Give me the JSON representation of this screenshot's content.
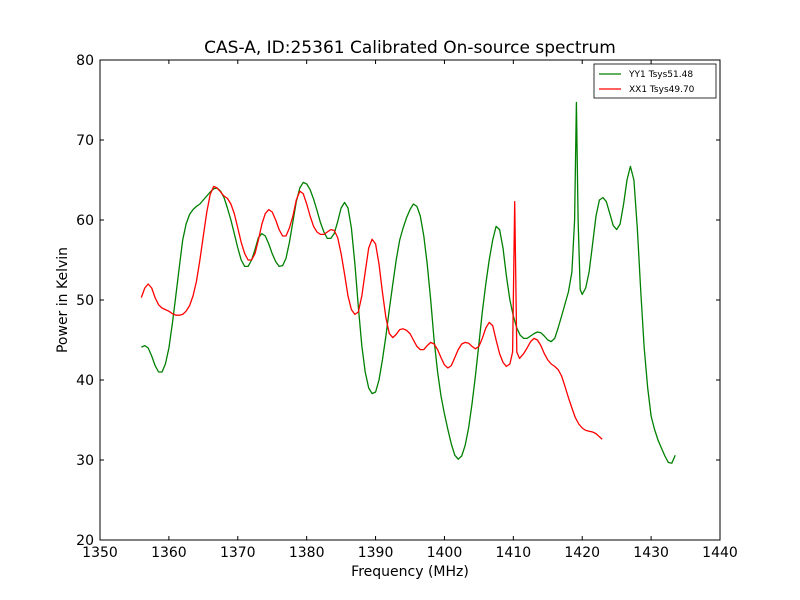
{
  "chart_data": {
    "type": "line",
    "title": "CAS-A, ID:25361 Calibrated On-source spectrum",
    "xlabel": "Frequency (MHz)",
    "ylabel": "Power in Kelvin",
    "xlim": [
      1350,
      1440
    ],
    "ylim": [
      20,
      80
    ],
    "xticks": [
      1350,
      1360,
      1370,
      1380,
      1390,
      1400,
      1410,
      1420,
      1430,
      1440
    ],
    "yticks": [
      20,
      30,
      40,
      50,
      60,
      70,
      80
    ],
    "grid": false,
    "legend_position": "top-right",
    "series": [
      {
        "name": "YY1 Tsys51.48",
        "color": "#008000",
        "points": [
          [
            1356.0,
            44.1
          ],
          [
            1356.5,
            44.3
          ],
          [
            1357.0,
            44.0
          ],
          [
            1357.5,
            43.0
          ],
          [
            1358.0,
            41.8
          ],
          [
            1358.5,
            41.0
          ],
          [
            1359.0,
            41.0
          ],
          [
            1359.5,
            42.0
          ],
          [
            1360.0,
            44.0
          ],
          [
            1360.5,
            47.0
          ],
          [
            1361.0,
            50.5
          ],
          [
            1361.5,
            54.0
          ],
          [
            1362.0,
            57.5
          ],
          [
            1362.5,
            59.5
          ],
          [
            1363.0,
            60.7
          ],
          [
            1363.5,
            61.3
          ],
          [
            1364.0,
            61.7
          ],
          [
            1364.5,
            62.0
          ],
          [
            1365.0,
            62.5
          ],
          [
            1365.5,
            63.0
          ],
          [
            1366.0,
            63.5
          ],
          [
            1366.5,
            63.9
          ],
          [
            1367.0,
            64.0
          ],
          [
            1367.5,
            63.6
          ],
          [
            1368.0,
            62.8
          ],
          [
            1368.5,
            61.5
          ],
          [
            1369.0,
            60.0
          ],
          [
            1369.5,
            58.3
          ],
          [
            1370.0,
            56.5
          ],
          [
            1370.5,
            55.0
          ],
          [
            1371.0,
            54.2
          ],
          [
            1371.5,
            54.2
          ],
          [
            1372.0,
            55.0
          ],
          [
            1372.5,
            56.3
          ],
          [
            1373.0,
            57.8
          ],
          [
            1373.5,
            58.3
          ],
          [
            1374.0,
            58.0
          ],
          [
            1374.5,
            57.0
          ],
          [
            1375.0,
            55.8
          ],
          [
            1375.5,
            54.8
          ],
          [
            1376.0,
            54.2
          ],
          [
            1376.5,
            54.3
          ],
          [
            1377.0,
            55.2
          ],
          [
            1377.5,
            57.2
          ],
          [
            1378.0,
            59.8
          ],
          [
            1378.5,
            62.3
          ],
          [
            1379.0,
            64.0
          ],
          [
            1379.5,
            64.7
          ],
          [
            1380.0,
            64.5
          ],
          [
            1380.5,
            63.8
          ],
          [
            1381.0,
            62.6
          ],
          [
            1381.5,
            61.2
          ],
          [
            1382.0,
            59.7
          ],
          [
            1382.5,
            58.5
          ],
          [
            1383.0,
            57.7
          ],
          [
            1383.5,
            57.7
          ],
          [
            1384.0,
            58.3
          ],
          [
            1384.5,
            59.8
          ],
          [
            1385.0,
            61.5
          ],
          [
            1385.5,
            62.2
          ],
          [
            1386.0,
            61.5
          ],
          [
            1386.5,
            59.0
          ],
          [
            1387.0,
            54.5
          ],
          [
            1387.5,
            49.2
          ],
          [
            1388.0,
            44.3
          ],
          [
            1388.5,
            41.0
          ],
          [
            1389.0,
            39.0
          ],
          [
            1389.5,
            38.3
          ],
          [
            1390.0,
            38.5
          ],
          [
            1390.5,
            40.0
          ],
          [
            1391.0,
            42.5
          ],
          [
            1391.5,
            45.5
          ],
          [
            1392.0,
            48.8
          ],
          [
            1392.5,
            52.0
          ],
          [
            1393.0,
            55.0
          ],
          [
            1393.5,
            57.5
          ],
          [
            1394.0,
            59.0
          ],
          [
            1394.5,
            60.3
          ],
          [
            1395.0,
            61.3
          ],
          [
            1395.5,
            62.0
          ],
          [
            1396.0,
            61.7
          ],
          [
            1396.5,
            60.5
          ],
          [
            1397.0,
            58.0
          ],
          [
            1397.5,
            54.5
          ],
          [
            1398.0,
            50.0
          ],
          [
            1398.5,
            45.0
          ],
          [
            1399.0,
            41.0
          ],
          [
            1399.5,
            38.0
          ],
          [
            1400.0,
            35.8
          ],
          [
            1400.5,
            33.8
          ],
          [
            1401.0,
            32.0
          ],
          [
            1401.5,
            30.6
          ],
          [
            1402.0,
            30.1
          ],
          [
            1402.5,
            30.5
          ],
          [
            1403.0,
            31.8
          ],
          [
            1403.5,
            34.0
          ],
          [
            1404.0,
            37.0
          ],
          [
            1404.5,
            40.5
          ],
          [
            1405.0,
            44.5
          ],
          [
            1405.5,
            48.5
          ],
          [
            1406.0,
            52.0
          ],
          [
            1406.5,
            55.0
          ],
          [
            1407.0,
            57.5
          ],
          [
            1407.5,
            59.2
          ],
          [
            1408.0,
            58.8
          ],
          [
            1408.5,
            56.5
          ],
          [
            1409.0,
            53.0
          ],
          [
            1409.5,
            50.0
          ],
          [
            1410.0,
            48.0
          ],
          [
            1410.5,
            46.5
          ],
          [
            1411.0,
            45.6
          ],
          [
            1411.5,
            45.2
          ],
          [
            1412.0,
            45.2
          ],
          [
            1412.5,
            45.5
          ],
          [
            1413.0,
            45.8
          ],
          [
            1413.5,
            46.0
          ],
          [
            1414.0,
            45.9
          ],
          [
            1414.5,
            45.5
          ],
          [
            1415.0,
            45.0
          ],
          [
            1415.5,
            44.8
          ],
          [
            1416.0,
            45.2
          ],
          [
            1416.5,
            46.5
          ],
          [
            1417.0,
            48.0
          ],
          [
            1417.5,
            49.5
          ],
          [
            1418.0,
            51.0
          ],
          [
            1418.5,
            53.5
          ],
          [
            1418.9,
            60.0
          ],
          [
            1419.15,
            74.7
          ],
          [
            1419.4,
            60.0
          ],
          [
            1419.7,
            51.3
          ],
          [
            1420.0,
            50.7
          ],
          [
            1420.5,
            51.5
          ],
          [
            1421.0,
            53.5
          ],
          [
            1421.5,
            57.0
          ],
          [
            1422.0,
            60.5
          ],
          [
            1422.5,
            62.5
          ],
          [
            1423.0,
            62.8
          ],
          [
            1423.5,
            62.3
          ],
          [
            1424.0,
            60.8
          ],
          [
            1424.5,
            59.3
          ],
          [
            1425.0,
            58.8
          ],
          [
            1425.5,
            59.5
          ],
          [
            1426.0,
            62.0
          ],
          [
            1426.5,
            65.0
          ],
          [
            1427.0,
            66.7
          ],
          [
            1427.5,
            65.0
          ],
          [
            1428.0,
            59.0
          ],
          [
            1428.5,
            51.0
          ],
          [
            1429.0,
            44.0
          ],
          [
            1429.5,
            39.0
          ],
          [
            1430.0,
            35.5
          ],
          [
            1430.5,
            33.8
          ],
          [
            1431.0,
            32.5
          ],
          [
            1431.5,
            31.5
          ],
          [
            1432.0,
            30.5
          ],
          [
            1432.5,
            29.7
          ],
          [
            1433.0,
            29.6
          ],
          [
            1433.5,
            30.6
          ]
        ]
      },
      {
        "name": "XX1 Tsys49.70",
        "color": "#ff0000",
        "points": [
          [
            1356.0,
            50.3
          ],
          [
            1356.5,
            51.5
          ],
          [
            1357.0,
            52.0
          ],
          [
            1357.5,
            51.5
          ],
          [
            1358.0,
            50.3
          ],
          [
            1358.5,
            49.4
          ],
          [
            1359.0,
            49.0
          ],
          [
            1359.5,
            48.8
          ],
          [
            1360.0,
            48.6
          ],
          [
            1360.5,
            48.3
          ],
          [
            1361.0,
            48.1
          ],
          [
            1361.5,
            48.1
          ],
          [
            1362.0,
            48.2
          ],
          [
            1362.5,
            48.6
          ],
          [
            1363.0,
            49.3
          ],
          [
            1363.5,
            50.5
          ],
          [
            1364.0,
            52.3
          ],
          [
            1364.5,
            55.0
          ],
          [
            1365.0,
            58.0
          ],
          [
            1365.5,
            61.0
          ],
          [
            1366.0,
            63.2
          ],
          [
            1366.5,
            64.2
          ],
          [
            1367.0,
            64.0
          ],
          [
            1367.5,
            63.5
          ],
          [
            1368.0,
            63.0
          ],
          [
            1368.5,
            62.7
          ],
          [
            1369.0,
            62.0
          ],
          [
            1369.5,
            60.8
          ],
          [
            1370.0,
            59.0
          ],
          [
            1370.5,
            57.2
          ],
          [
            1371.0,
            55.8
          ],
          [
            1371.5,
            55.0
          ],
          [
            1372.0,
            55.0
          ],
          [
            1372.5,
            55.8
          ],
          [
            1373.0,
            57.5
          ],
          [
            1373.5,
            59.5
          ],
          [
            1374.0,
            60.8
          ],
          [
            1374.5,
            61.3
          ],
          [
            1375.0,
            61.0
          ],
          [
            1375.5,
            60.0
          ],
          [
            1376.0,
            58.8
          ],
          [
            1376.5,
            58.0
          ],
          [
            1377.0,
            58.0
          ],
          [
            1377.5,
            59.0
          ],
          [
            1378.0,
            60.5
          ],
          [
            1378.5,
            62.5
          ],
          [
            1379.0,
            63.6
          ],
          [
            1379.5,
            63.3
          ],
          [
            1380.0,
            62.0
          ],
          [
            1380.5,
            60.5
          ],
          [
            1381.0,
            59.2
          ],
          [
            1381.5,
            58.5
          ],
          [
            1382.0,
            58.2
          ],
          [
            1382.5,
            58.2
          ],
          [
            1383.0,
            58.5
          ],
          [
            1383.5,
            58.8
          ],
          [
            1384.0,
            58.7
          ],
          [
            1384.5,
            57.8
          ],
          [
            1385.0,
            55.8
          ],
          [
            1385.5,
            53.2
          ],
          [
            1386.0,
            50.5
          ],
          [
            1386.5,
            48.8
          ],
          [
            1387.0,
            48.2
          ],
          [
            1387.5,
            48.5
          ],
          [
            1388.0,
            50.5
          ],
          [
            1388.5,
            53.5
          ],
          [
            1389.0,
            56.5
          ],
          [
            1389.5,
            57.6
          ],
          [
            1390.0,
            57.0
          ],
          [
            1390.5,
            54.5
          ],
          [
            1391.0,
            51.0
          ],
          [
            1391.5,
            47.8
          ],
          [
            1392.0,
            45.8
          ],
          [
            1392.5,
            45.3
          ],
          [
            1393.0,
            45.7
          ],
          [
            1393.5,
            46.3
          ],
          [
            1394.0,
            46.4
          ],
          [
            1394.5,
            46.2
          ],
          [
            1395.0,
            45.8
          ],
          [
            1395.5,
            45.0
          ],
          [
            1396.0,
            44.2
          ],
          [
            1396.5,
            43.8
          ],
          [
            1397.0,
            43.8
          ],
          [
            1397.5,
            44.3
          ],
          [
            1398.0,
            44.7
          ],
          [
            1398.5,
            44.5
          ],
          [
            1399.0,
            43.8
          ],
          [
            1399.5,
            42.8
          ],
          [
            1400.0,
            41.9
          ],
          [
            1400.5,
            41.5
          ],
          [
            1401.0,
            41.8
          ],
          [
            1401.5,
            42.8
          ],
          [
            1402.0,
            43.8
          ],
          [
            1402.5,
            44.5
          ],
          [
            1403.0,
            44.7
          ],
          [
            1403.5,
            44.6
          ],
          [
            1404.0,
            44.2
          ],
          [
            1404.5,
            43.9
          ],
          [
            1405.0,
            44.2
          ],
          [
            1405.5,
            45.2
          ],
          [
            1406.0,
            46.5
          ],
          [
            1406.5,
            47.2
          ],
          [
            1407.0,
            46.8
          ],
          [
            1407.5,
            45.0
          ],
          [
            1408.0,
            43.3
          ],
          [
            1408.5,
            42.2
          ],
          [
            1409.0,
            41.7
          ],
          [
            1409.5,
            42.0
          ],
          [
            1409.9,
            43.5
          ],
          [
            1410.2,
            62.3
          ],
          [
            1410.5,
            43.5
          ],
          [
            1410.9,
            42.7
          ],
          [
            1411.5,
            43.3
          ],
          [
            1412.0,
            44.0
          ],
          [
            1412.5,
            44.8
          ],
          [
            1413.0,
            45.2
          ],
          [
            1413.5,
            45.0
          ],
          [
            1414.0,
            44.3
          ],
          [
            1414.5,
            43.3
          ],
          [
            1415.0,
            42.5
          ],
          [
            1415.5,
            42.0
          ],
          [
            1416.0,
            41.7
          ],
          [
            1416.5,
            41.3
          ],
          [
            1417.0,
            40.5
          ],
          [
            1417.5,
            39.2
          ],
          [
            1418.0,
            37.8
          ],
          [
            1418.5,
            36.5
          ],
          [
            1419.0,
            35.3
          ],
          [
            1419.5,
            34.5
          ],
          [
            1420.0,
            34.0
          ],
          [
            1420.5,
            33.7
          ],
          [
            1421.0,
            33.6
          ],
          [
            1421.5,
            33.5
          ],
          [
            1422.0,
            33.3
          ],
          [
            1422.5,
            32.9
          ],
          [
            1422.9,
            32.6
          ]
        ]
      }
    ]
  }
}
